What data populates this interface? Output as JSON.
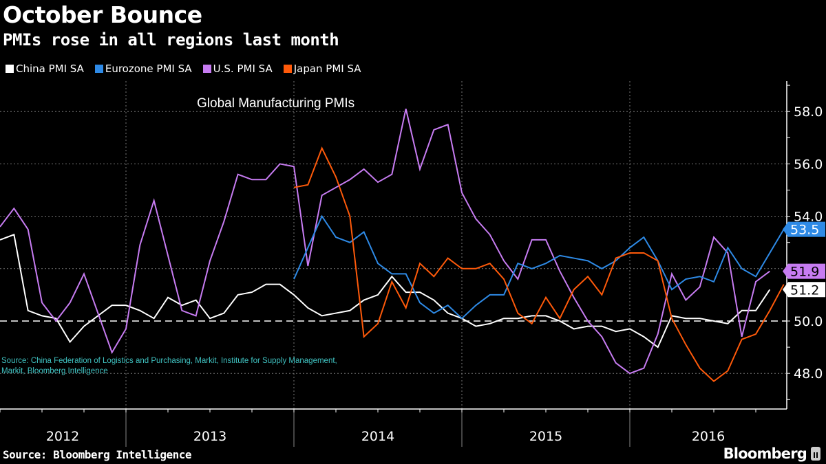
{
  "header": {
    "title": "October Bounce",
    "subtitle": "PMIs rose in all regions last month"
  },
  "footer": {
    "source": "Source: Bloomberg Intelligence",
    "brand": "Bloomberg"
  },
  "chart_data": {
    "type": "line",
    "title": "Global Manufacturing PMIs",
    "annotation": "Source: China Federation of Logistics and Purchasing, Markit, Institute for Supply Management, Markit, Bloomberg Intelligence",
    "xlabel": "",
    "ylabel": "",
    "x_start": "2012-03",
    "x_end": "2016-10",
    "x_tick_labels": [
      "2012",
      "2013",
      "2014",
      "2015",
      "2016"
    ],
    "ylim": [
      46.8,
      59.0
    ],
    "y_ticks": [
      48.0,
      50.0,
      52.0,
      54.0,
      56.0,
      58.0
    ],
    "y_tick_labels": [
      "48.0",
      "50.0",
      "52.0",
      "54.0",
      "56.0",
      "58.0"
    ],
    "reference_line": 50.0,
    "grid": true,
    "legend_position": "top-left",
    "series": [
      {
        "name": "China PMI SA",
        "color": "#ffffff",
        "start": "2012-03",
        "last_label": "51.2",
        "values": [
          53.1,
          53.3,
          50.4,
          50.2,
          50.1,
          49.2,
          49.8,
          50.2,
          50.6,
          50.6,
          50.4,
          50.1,
          50.9,
          50.6,
          50.8,
          50.1,
          50.3,
          51.0,
          51.1,
          51.4,
          51.4,
          51.0,
          50.5,
          50.2,
          50.3,
          50.4,
          50.8,
          51.0,
          51.7,
          51.1,
          51.1,
          50.8,
          50.3,
          50.1,
          49.8,
          49.9,
          50.1,
          50.1,
          50.2,
          50.2,
          50.0,
          49.7,
          49.8,
          49.8,
          49.6,
          49.7,
          49.4,
          49.0,
          50.2,
          50.1,
          50.1,
          50.0,
          49.9,
          50.4,
          50.4,
          51.2
        ]
      },
      {
        "name": "Eurozone PMI SA",
        "color": "#2e8ae6",
        "start": "2013-12",
        "last_label": "53.5",
        "values": [
          51.6,
          52.8,
          54.0,
          53.2,
          53.0,
          53.4,
          52.2,
          51.8,
          51.8,
          50.7,
          50.3,
          50.6,
          50.1,
          50.6,
          51.0,
          51.0,
          52.2,
          52.0,
          52.2,
          52.5,
          52.4,
          52.3,
          52.0,
          52.3,
          52.8,
          53.2,
          52.3,
          51.2,
          51.6,
          51.7,
          51.5,
          52.8,
          52.0,
          51.7,
          52.6,
          53.5
        ]
      },
      {
        "name": "U.S. PMI SA",
        "color": "#c77cf2",
        "start": "2012-03",
        "last_label": "51.9",
        "values": [
          53.6,
          54.3,
          53.5,
          50.7,
          50.0,
          50.7,
          51.8,
          50.3,
          48.8,
          49.7,
          52.9,
          54.6,
          52.5,
          50.4,
          50.2,
          52.3,
          53.8,
          55.6,
          55.4,
          55.4,
          56.0,
          55.9,
          52.1,
          54.8,
          55.1,
          55.4,
          55.8,
          55.3,
          55.6,
          58.1,
          55.8,
          57.3,
          57.5,
          54.9,
          53.9,
          53.3,
          52.3,
          51.6,
          53.1,
          53.1,
          51.9,
          50.9,
          50.0,
          49.4,
          48.4,
          48.0,
          48.2,
          49.5,
          51.8,
          50.8,
          51.3,
          53.2,
          52.6,
          49.4,
          51.5,
          51.9
        ]
      },
      {
        "name": "Japan PMI SA",
        "color": "#ff5a0a",
        "start": "2013-12",
        "last_label": "51.4",
        "values": [
          55.1,
          55.2,
          56.6,
          55.5,
          54.0,
          49.4,
          49.9,
          51.5,
          50.5,
          52.2,
          51.7,
          52.4,
          52.0,
          52.0,
          52.2,
          51.6,
          50.3,
          49.9,
          50.9,
          50.1,
          51.2,
          51.7,
          51.0,
          52.4,
          52.6,
          52.6,
          52.3,
          50.1,
          49.1,
          48.2,
          47.7,
          48.1,
          49.3,
          49.5,
          50.4,
          51.4
        ]
      }
    ],
    "value_badges": [
      {
        "series": "Eurozone PMI SA",
        "label": "53.5",
        "bg": "#2e8ae6",
        "fg": "#ffffff"
      },
      {
        "series": "U.S. PMI SA",
        "label": "51.9",
        "bg": "#c77cf2",
        "fg": "#000000"
      },
      {
        "series": "China PMI SA",
        "label": "51.2",
        "bg": "#ffffff",
        "fg": "#000000"
      }
    ]
  }
}
